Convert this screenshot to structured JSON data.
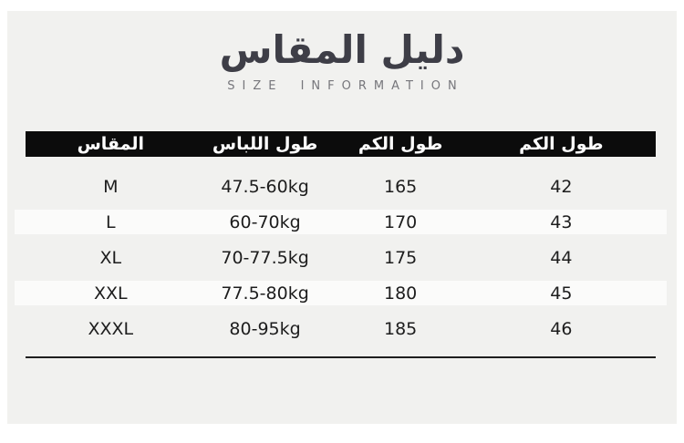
{
  "chart_data": {
    "type": "table",
    "title": "دليل المقاس",
    "subtitle": "SIZE INFORMATION",
    "columns": [
      "المقاس",
      "طول اللباس",
      "طول الكم",
      "طول الكم"
    ],
    "rows": [
      [
        "M",
        "47.5-60kg",
        "165",
        "42"
      ],
      [
        "L",
        "60-70kg",
        "170",
        "43"
      ],
      [
        "XL",
        "70-77.5kg",
        "175",
        "44"
      ],
      [
        "XXL",
        "77.5-80kg",
        "180",
        "45"
      ],
      [
        "XXXL",
        "80-95kg",
        "185",
        "46"
      ]
    ],
    "layout_hints": {
      "header_style": "black bar, white bold text",
      "row_striping": "alternate subtle white stripe on rows 2 and 4",
      "bottom_rule": true
    }
  },
  "colors": {
    "page_background": "#ffffff",
    "card_background": "#f1f1ef",
    "header_bar": "#0c0c0c",
    "header_text": "#ffffff",
    "title_text": "#3e3e47",
    "subtitle_text": "#76767b",
    "body_text": "#1d1d1d",
    "stripe": "#fbfbfa",
    "rule": "#1e1e1e"
  }
}
